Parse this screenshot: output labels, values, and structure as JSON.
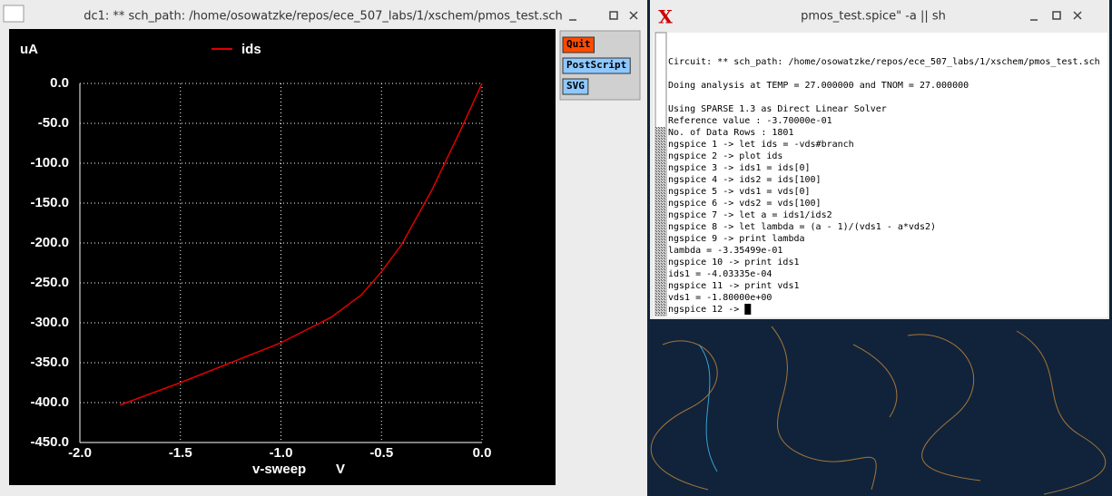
{
  "plot_window": {
    "title": "dc1: ** sch_path: /home/osowatzke/repos/ece_507_labs/1/xschem/pmos_test.sch",
    "buttons": [
      "Quit",
      "PostScript",
      "SVG"
    ],
    "chart_data": {
      "type": "line",
      "y_label": "uA",
      "x_label": "v-sweep",
      "x_unit": "V",
      "series": [
        {
          "name": "ids",
          "color": "#e00000",
          "x": [
            -1.8,
            -1.5,
            -1.25,
            -1.0,
            -0.75,
            -0.6,
            -0.5,
            -0.4,
            -0.25,
            -0.1,
            0.0
          ],
          "values": [
            -403,
            -375,
            -350,
            -325,
            -293,
            -265,
            -236,
            -202,
            -134,
            -55,
            0
          ]
        }
      ],
      "xlim": [
        -2.0,
        0.0
      ],
      "xticks": [
        {
          "value": -2.0,
          "label": "-2.0"
        },
        {
          "value": -1.5,
          "label": "-1.5"
        },
        {
          "value": -1.0,
          "label": "-1.0"
        },
        {
          "value": -0.5,
          "label": "-0.5"
        },
        {
          "value": 0.0,
          "label": "0.0"
        }
      ],
      "ylim": [
        -450,
        0
      ],
      "yticks": [
        {
          "value": 0,
          "label": "0.0"
        },
        {
          "value": -50,
          "label": "-50.0"
        },
        {
          "value": -100,
          "label": "-100.0"
        },
        {
          "value": -150,
          "label": "-150.0"
        },
        {
          "value": -200,
          "label": "-200.0"
        },
        {
          "value": -250,
          "label": "-250.0"
        },
        {
          "value": -300,
          "label": "-300.0"
        },
        {
          "value": -350,
          "label": "-350.0"
        },
        {
          "value": -400,
          "label": "-400.0"
        },
        {
          "value": -450,
          "label": "-450.0"
        }
      ],
      "grid": true
    }
  },
  "terminal_window": {
    "title": "pmos_test.spice\" -a || sh",
    "lines": [
      "Circuit: ** sch_path: /home/osowatzke/repos/ece_507_labs/1/xschem/pmos_test.sch",
      "Doing analysis at TEMP = 27.000000 and TNOM = 27.000000",
      "Using SPARSE 1.3 as Direct Linear Solver",
      " Reference value : -3.70000e-01",
      "No. of Data Rows : 1801",
      "ngspice 1 -> let ids = -vds#branch",
      "ngspice 2 -> plot ids",
      "ngspice 3 -> ids1 = ids[0]",
      "ngspice 4 -> ids2 = ids[100]",
      "ngspice 5 -> vds1 = vds[0]",
      "ngspice 6 -> vds2 = vds[100]",
      "ngspice 7 -> let a = ids1/ids2",
      "ngspice 8 -> let lambda = (a - 1)/(vds1 - a*vds2)",
      "ngspice 9 -> print lambda",
      "lambda = -3.35499e-01",
      "ngspice 10 -> print ids1",
      "ids1 = -4.03335e-04",
      "ngspice 11 -> print vds1",
      "vds1 = -1.80000e+00",
      "ngspice 12 ->"
    ]
  }
}
